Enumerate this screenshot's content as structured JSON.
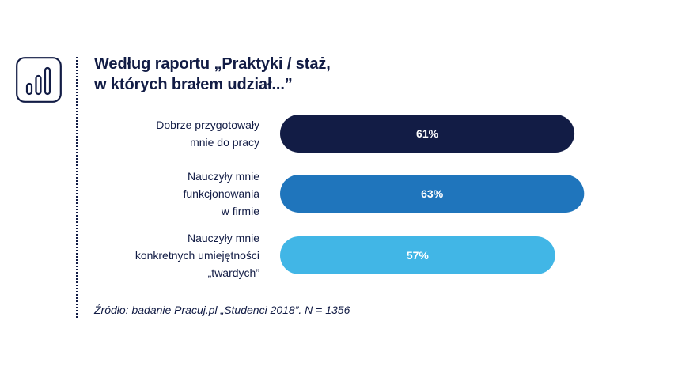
{
  "header": {
    "icon": "bar-chart-icon",
    "title": "Według raportu „Praktyki / staż,\nw których brałem udział...”"
  },
  "chart_data": {
    "type": "bar",
    "orientation": "horizontal",
    "title": "Według raportu „Praktyki / staż, w których brałem udział...”",
    "categories": [
      "Dobrze przygotowały mnie do pracy",
      "Nauczyły mnie funkcjonowania w firmie",
      "Nauczyły mnie konkretnych umiejętności „twardych”"
    ],
    "category_lines": [
      [
        "Dobrze przygotowały",
        "mnie do pracy"
      ],
      [
        "Nauczyły mnie",
        "funkcjonowania",
        "w firmie"
      ],
      [
        "Nauczyły mnie",
        "konkretnych umiejętności",
        "„twardych”"
      ]
    ],
    "values": [
      61,
      63,
      57
    ],
    "value_labels": [
      "61%",
      "63%",
      "57%"
    ],
    "bar_colors": [
      "#121c45",
      "#1f75bc",
      "#41b6e6"
    ],
    "xlim": [
      0,
      100
    ],
    "grid": false,
    "legend": false
  },
  "footer": {
    "source": "Źródło: badanie Pracuj.pl „Studenci 2018”. N = 1356"
  }
}
